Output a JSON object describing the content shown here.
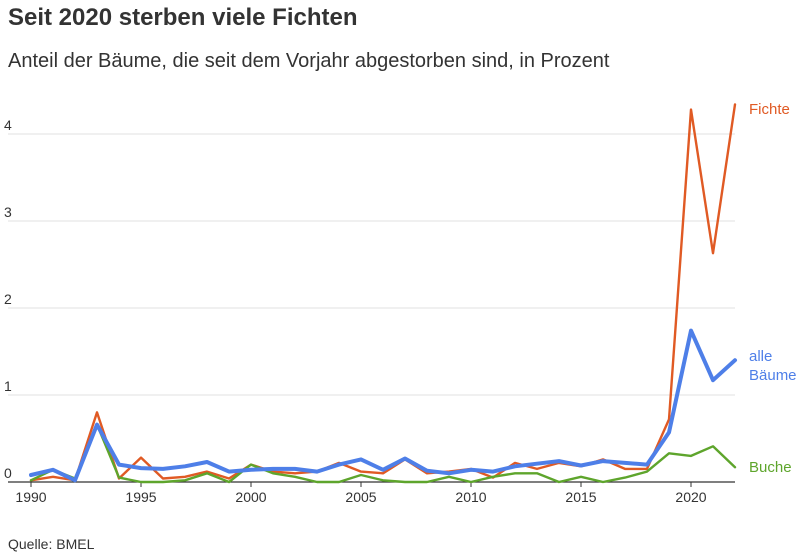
{
  "title": "Seit 2020 sterben viele Fichten",
  "subtitle": "Anteil der Bäume, die seit dem Vorjahr abgestorben sind, in Prozent",
  "source": "Quelle: BMEL",
  "chart_data": {
    "type": "line",
    "x": [
      1990,
      1991,
      1992,
      1993,
      1994,
      1995,
      1996,
      1997,
      1998,
      1999,
      2000,
      2001,
      2002,
      2003,
      2004,
      2005,
      2006,
      2007,
      2008,
      2009,
      2010,
      2011,
      2012,
      2013,
      2014,
      2015,
      2016,
      2017,
      2018,
      2019,
      2020,
      2021,
      2022
    ],
    "xticks": [
      1990,
      1995,
      2000,
      2005,
      2010,
      2015,
      2020
    ],
    "yticks": [
      0,
      1,
      2,
      3,
      4
    ],
    "xlim": [
      1990,
      2022
    ],
    "ylim": [
      0,
      4.5
    ],
    "grid": "horizontal",
    "series": [
      {
        "name": "Fichte",
        "color": "#e05a24",
        "values": [
          0.02,
          0.06,
          0.02,
          0.8,
          0.04,
          0.28,
          0.04,
          0.06,
          0.12,
          0.04,
          0.2,
          0.12,
          0.1,
          0.12,
          0.22,
          0.12,
          0.1,
          0.26,
          0.1,
          0.12,
          0.15,
          0.05,
          0.22,
          0.15,
          0.22,
          0.18,
          0.26,
          0.15,
          0.15,
          0.72,
          4.28,
          2.63,
          4.34
        ]
      },
      {
        "name": "Buche",
        "color": "#5ea52c",
        "values": [
          0.02,
          0.14,
          0.04,
          0.66,
          0.05,
          0.0,
          0.0,
          0.02,
          0.1,
          0.0,
          0.2,
          0.1,
          0.06,
          0.0,
          0.0,
          0.08,
          0.02,
          0.0,
          0.0,
          0.06,
          0.0,
          0.06,
          0.1,
          0.1,
          0.0,
          0.06,
          0.0,
          0.05,
          0.12,
          0.33,
          0.3,
          0.41,
          0.17
        ]
      },
      {
        "name": "alle Bäume",
        "label_lines": [
          "alle",
          "Bäume"
        ],
        "color": "#4e7fe8",
        "values": [
          0.08,
          0.14,
          0.02,
          0.66,
          0.2,
          0.16,
          0.15,
          0.18,
          0.23,
          0.12,
          0.14,
          0.15,
          0.15,
          0.12,
          0.2,
          0.26,
          0.14,
          0.27,
          0.13,
          0.1,
          0.14,
          0.12,
          0.18,
          0.21,
          0.24,
          0.19,
          0.24,
          0.22,
          0.2,
          0.57,
          1.74,
          1.17,
          1.4
        ]
      }
    ]
  }
}
